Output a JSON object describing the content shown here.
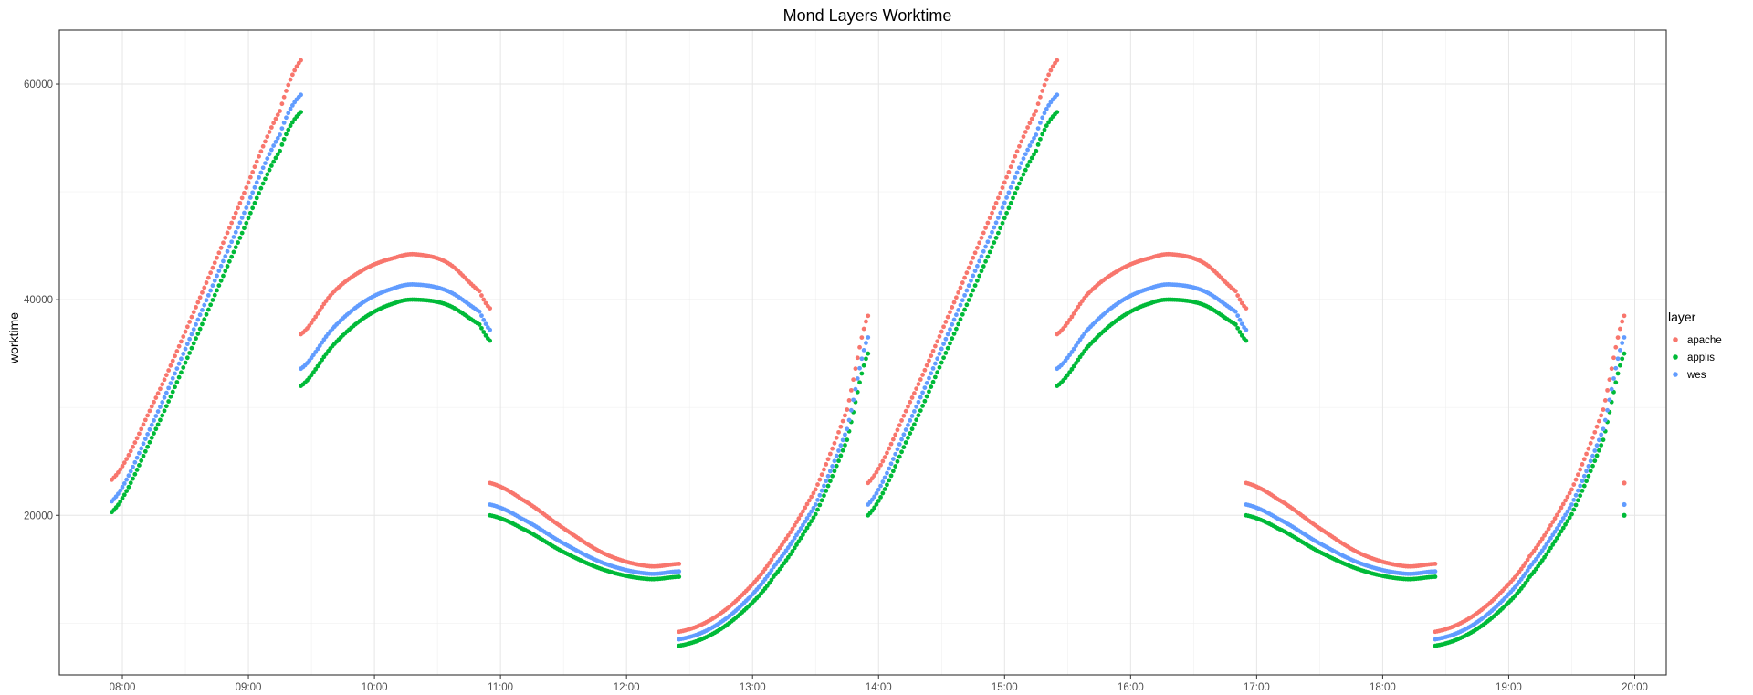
{
  "chart_data": {
    "type": "scatter",
    "title": "Mond Layers Worktime",
    "xlabel": "",
    "ylabel": "worktime",
    "x_unit": "time of day",
    "xlim": [
      "07:30",
      "20:15"
    ],
    "ylim": [
      5200,
      65000
    ],
    "x_ticks": [
      "08:00",
      "09:00",
      "10:00",
      "11:00",
      "12:00",
      "13:00",
      "14:00",
      "15:00",
      "16:00",
      "17:00",
      "18:00",
      "19:00",
      "20:00"
    ],
    "y_ticks": [
      20000,
      40000,
      60000
    ],
    "grid": true,
    "legend": {
      "title": "layer",
      "position": "right"
    },
    "series": [
      {
        "name": "apache",
        "color": "#F8766D",
        "segments": [
          {
            "x": [
              "07:55",
              "08:15",
              "08:35",
              "08:55",
              "09:15",
              "09:25"
            ],
            "y": [
              23300,
              30500,
              39300,
              48500,
              57500,
              62200
            ]
          },
          {
            "x": [
              "09:25",
              "09:40",
              "09:55",
              "10:10",
              "10:20",
              "10:35",
              "10:50",
              "10:55"
            ],
            "y": [
              36800,
              40600,
              42800,
              43900,
              44200,
              43400,
              40800,
              39200
            ]
          },
          {
            "x": [
              "10:55",
              "11:10",
              "11:30",
              "11:50",
              "12:10",
              "12:25"
            ],
            "y": [
              23000,
              21500,
              18800,
              16400,
              15300,
              15500
            ]
          },
          {
            "x": [
              "12:25",
              "12:40",
              "12:55",
              "13:10",
              "13:30",
              "13:45",
              "13:55"
            ],
            "y": [
              9200,
              10300,
              12600,
              16200,
              22400,
              29800,
              38500
            ]
          },
          {
            "x": [
              "13:55",
              "14:15",
              "14:35",
              "14:55",
              "15:15",
              "15:25"
            ],
            "y": [
              23000,
              30500,
              39300,
              48500,
              57500,
              62200
            ]
          },
          {
            "x": [
              "15:25",
              "15:40",
              "15:55",
              "16:10",
              "16:20",
              "16:35",
              "16:50",
              "16:55"
            ],
            "y": [
              36800,
              40600,
              42800,
              43900,
              44200,
              43400,
              40800,
              39200
            ]
          },
          {
            "x": [
              "16:55",
              "17:10",
              "17:30",
              "17:50",
              "18:10",
              "18:25"
            ],
            "y": [
              23000,
              21500,
              18800,
              16400,
              15300,
              15500
            ]
          },
          {
            "x": [
              "18:25",
              "18:40",
              "18:55",
              "19:10",
              "19:30",
              "19:45",
              "19:55"
            ],
            "y": [
              9200,
              10300,
              12600,
              16200,
              22400,
              29800,
              38500
            ]
          },
          {
            "x": [
              "19:55"
            ],
            "y": [
              23000
            ]
          }
        ]
      },
      {
        "name": "applis",
        "color": "#00BA38",
        "segments": [
          {
            "x": [
              "07:55",
              "08:15",
              "08:35",
              "08:55",
              "09:15",
              "09:25"
            ],
            "y": [
              20300,
              27600,
              36400,
              45300,
              53800,
              57400
            ]
          },
          {
            "x": [
              "09:25",
              "09:40",
              "09:55",
              "10:10",
              "10:20",
              "10:35",
              "10:50",
              "10:55"
            ],
            "y": [
              32000,
              35700,
              38300,
              39700,
              40000,
              39500,
              37700,
              36200
            ]
          },
          {
            "x": [
              "10:55",
              "11:10",
              "11:30",
              "11:50",
              "12:10",
              "12:25"
            ],
            "y": [
              20000,
              18800,
              16600,
              14900,
              14100,
              14300
            ]
          },
          {
            "x": [
              "12:25",
              "12:40",
              "12:55",
              "13:10",
              "13:30",
              "13:45",
              "13:55"
            ],
            "y": [
              7900,
              8900,
              11000,
              14300,
              20100,
              27000,
              35000
            ]
          },
          {
            "x": [
              "13:55",
              "14:15",
              "14:35",
              "14:55",
              "15:15",
              "15:25"
            ],
            "y": [
              20000,
              27600,
              36400,
              45300,
              53800,
              57400
            ]
          },
          {
            "x": [
              "15:25",
              "15:40",
              "15:55",
              "16:10",
              "16:20",
              "16:35",
              "16:50",
              "16:55"
            ],
            "y": [
              32000,
              35700,
              38300,
              39700,
              40000,
              39500,
              37700,
              36200
            ]
          },
          {
            "x": [
              "16:55",
              "17:10",
              "17:30",
              "17:50",
              "18:10",
              "18:25"
            ],
            "y": [
              20000,
              18800,
              16600,
              14900,
              14100,
              14300
            ]
          },
          {
            "x": [
              "18:25",
              "18:40",
              "18:55",
              "19:10",
              "19:30",
              "19:45",
              "19:55"
            ],
            "y": [
              7900,
              8900,
              11000,
              14300,
              20100,
              27000,
              35000
            ]
          },
          {
            "x": [
              "19:55"
            ],
            "y": [
              20000
            ]
          }
        ]
      },
      {
        "name": "wes",
        "color": "#619CFF",
        "segments": [
          {
            "x": [
              "07:55",
              "08:15",
              "08:35",
              "08:55",
              "09:15",
              "09:25"
            ],
            "y": [
              21300,
              28800,
              37700,
              46700,
              55300,
              59000
            ]
          },
          {
            "x": [
              "09:25",
              "09:40",
              "09:55",
              "10:10",
              "10:20",
              "10:35",
              "10:50",
              "10:55"
            ],
            "y": [
              33600,
              37300,
              39800,
              41100,
              41400,
              40800,
              38900,
              37200
            ]
          },
          {
            "x": [
              "10:55",
              "11:10",
              "11:30",
              "11:50",
              "12:10",
              "12:25"
            ],
            "y": [
              21000,
              19700,
              17400,
              15500,
              14600,
              14800
            ]
          },
          {
            "x": [
              "12:25",
              "12:40",
              "12:55",
              "13:10",
              "13:30",
              "13:45",
              "13:55"
            ],
            "y": [
              8500,
              9500,
              11700,
              15200,
              21000,
              28000,
              36500
            ]
          },
          {
            "x": [
              "13:55",
              "14:15",
              "14:35",
              "14:55",
              "15:15",
              "15:25"
            ],
            "y": [
              21000,
              28800,
              37700,
              46700,
              55300,
              59000
            ]
          },
          {
            "x": [
              "15:25",
              "15:40",
              "15:55",
              "16:10",
              "16:20",
              "16:35",
              "16:50",
              "16:55"
            ],
            "y": [
              33600,
              37300,
              39800,
              41100,
              41400,
              40800,
              38900,
              37200
            ]
          },
          {
            "x": [
              "16:55",
              "17:10",
              "17:30",
              "17:50",
              "18:10",
              "18:25"
            ],
            "y": [
              21000,
              19700,
              17400,
              15500,
              14600,
              14800
            ]
          },
          {
            "x": [
              "18:25",
              "18:40",
              "18:55",
              "19:10",
              "19:30",
              "19:45",
              "19:55"
            ],
            "y": [
              8500,
              9500,
              11700,
              15200,
              21000,
              28000,
              36500
            ]
          },
          {
            "x": [
              "19:55"
            ],
            "y": [
              21000
            ]
          }
        ]
      }
    ]
  }
}
